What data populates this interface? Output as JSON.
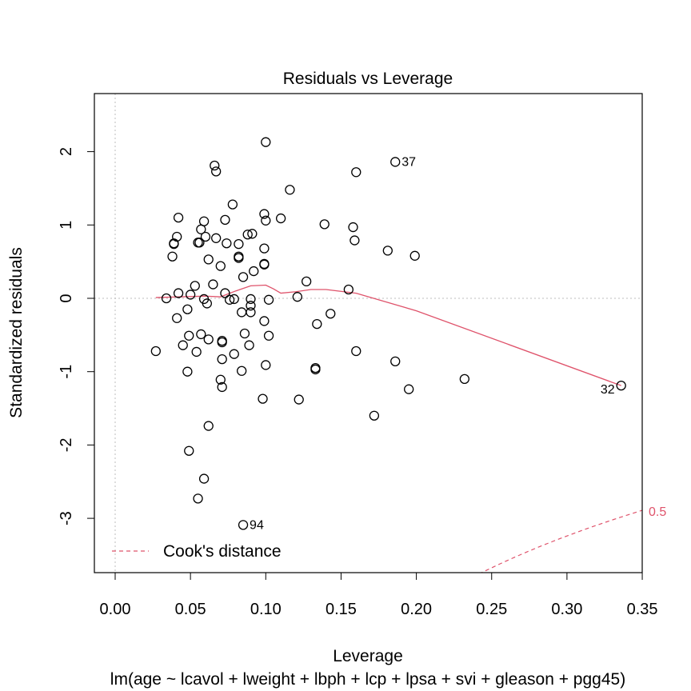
{
  "chart_data": {
    "type": "scatter",
    "title": "Residuals vs Leverage",
    "xlabel": "Leverage",
    "subtitle": "lm(age ~ lcavol + lweight + lbph + lcp + lpsa + svi + gleason + pgg45)",
    "ylabel": "Standardized residuals",
    "xlim": [
      -0.014,
      0.35
    ],
    "ylim": [
      -3.75,
      2.8
    ],
    "x_ticks": [
      "0.00",
      "0.05",
      "0.10",
      "0.15",
      "0.20",
      "0.25",
      "0.30",
      "0.35"
    ],
    "y_ticks": [
      "-3",
      "-2",
      "-1",
      "0",
      "1",
      "2"
    ],
    "legend": {
      "label": "Cook's distance",
      "position": "bottom-left"
    },
    "cooks_contour_label": "0.5",
    "colors": {
      "points": "#000000",
      "smooth": "#DF536B",
      "reference": "#BEBEBE"
    },
    "points": [
      [
        0.1,
        2.13
      ],
      [
        0.066,
        1.81
      ],
      [
        0.067,
        1.73
      ],
      [
        0.16,
        1.72
      ],
      [
        0.186,
        1.86,
        "37"
      ],
      [
        0.116,
        1.48
      ],
      [
        0.078,
        1.28
      ],
      [
        0.042,
        1.1
      ],
      [
        0.073,
        1.07
      ],
      [
        0.099,
        1.15
      ],
      [
        0.1,
        1.06
      ],
      [
        0.11,
        1.09
      ],
      [
        0.059,
        1.05
      ],
      [
        0.158,
        0.97
      ],
      [
        0.139,
        1.01
      ],
      [
        0.057,
        0.94
      ],
      [
        0.06,
        0.84
      ],
      [
        0.041,
        0.84
      ],
      [
        0.039,
        0.74
      ],
      [
        0.039,
        0.75
      ],
      [
        0.055,
        0.76
      ],
      [
        0.056,
        0.76
      ],
      [
        0.067,
        0.82
      ],
      [
        0.074,
        0.75
      ],
      [
        0.082,
        0.74
      ],
      [
        0.088,
        0.87
      ],
      [
        0.091,
        0.88
      ],
      [
        0.159,
        0.79
      ],
      [
        0.099,
        0.68
      ],
      [
        0.181,
        0.65
      ],
      [
        0.199,
        0.58
      ],
      [
        0.038,
        0.57
      ],
      [
        0.062,
        0.53
      ],
      [
        0.082,
        0.57
      ],
      [
        0.082,
        0.55
      ],
      [
        0.099,
        0.47
      ],
      [
        0.099,
        0.46
      ],
      [
        0.07,
        0.44
      ],
      [
        0.092,
        0.37
      ],
      [
        0.085,
        0.29
      ],
      [
        0.127,
        0.23
      ],
      [
        0.053,
        0.17
      ],
      [
        0.065,
        0.19
      ],
      [
        0.155,
        0.12
      ],
      [
        0.042,
        0.07
      ],
      [
        0.034,
        0.0
      ],
      [
        0.05,
        0.05
      ],
      [
        0.059,
        -0.01
      ],
      [
        0.061,
        -0.07
      ],
      [
        0.073,
        0.07
      ],
      [
        0.076,
        -0.02
      ],
      [
        0.079,
        -0.01
      ],
      [
        0.09,
        -0.01
      ],
      [
        0.09,
        -0.1
      ],
      [
        0.102,
        -0.02
      ],
      [
        0.121,
        0.02
      ],
      [
        0.048,
        -0.15
      ],
      [
        0.084,
        -0.19
      ],
      [
        0.09,
        -0.19
      ],
      [
        0.143,
        -0.21
      ],
      [
        0.041,
        -0.27
      ],
      [
        0.099,
        -0.31
      ],
      [
        0.134,
        -0.35
      ],
      [
        0.086,
        -0.48
      ],
      [
        0.049,
        -0.51
      ],
      [
        0.057,
        -0.49
      ],
      [
        0.102,
        -0.51
      ],
      [
        0.062,
        -0.56
      ],
      [
        0.071,
        -0.58
      ],
      [
        0.071,
        -0.6
      ],
      [
        0.045,
        -0.64
      ],
      [
        0.054,
        -0.73
      ],
      [
        0.027,
        -0.72
      ],
      [
        0.079,
        -0.76
      ],
      [
        0.089,
        -0.64
      ],
      [
        0.16,
        -0.72
      ],
      [
        0.071,
        -0.83
      ],
      [
        0.1,
        -0.91
      ],
      [
        0.186,
        -0.86
      ],
      [
        0.133,
        -0.95
      ],
      [
        0.133,
        -0.97
      ],
      [
        0.048,
        -1.0
      ],
      [
        0.084,
        -0.99
      ],
      [
        0.07,
        -1.11
      ],
      [
        0.071,
        -1.21
      ],
      [
        0.232,
        -1.1
      ],
      [
        0.336,
        -1.19,
        "32"
      ],
      [
        0.195,
        -1.24
      ],
      [
        0.098,
        -1.37
      ],
      [
        0.122,
        -1.38
      ],
      [
        0.172,
        -1.6
      ],
      [
        0.062,
        -1.74
      ],
      [
        0.049,
        -2.08
      ],
      [
        0.059,
        -2.46
      ],
      [
        0.055,
        -2.73
      ],
      [
        0.085,
        -3.09,
        "94"
      ]
    ],
    "smooth_line": [
      [
        0.027,
        0.01
      ],
      [
        0.06,
        0.03
      ],
      [
        0.07,
        0.02
      ],
      [
        0.08,
        0.1
      ],
      [
        0.09,
        0.17
      ],
      [
        0.1,
        0.18
      ],
      [
        0.105,
        0.13
      ],
      [
        0.11,
        0.07
      ],
      [
        0.12,
        0.09
      ],
      [
        0.13,
        0.12
      ],
      [
        0.14,
        0.12
      ],
      [
        0.16,
        0.07
      ],
      [
        0.2,
        -0.17
      ],
      [
        0.336,
        -1.19
      ]
    ]
  }
}
